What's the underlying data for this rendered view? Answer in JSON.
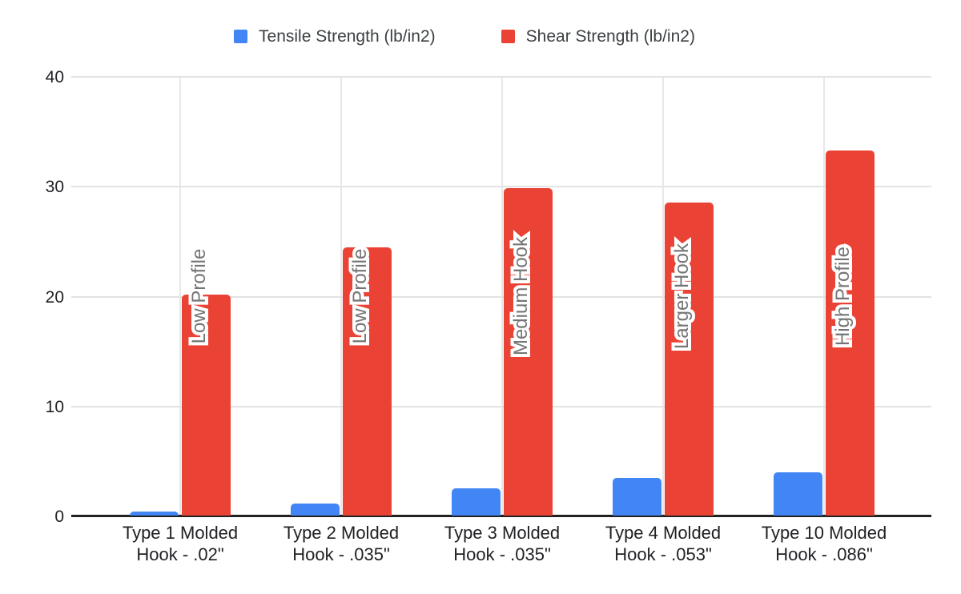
{
  "legend": {
    "items": [
      {
        "label": "Tensile Strength (lb/in2)",
        "color": "#4285f4"
      },
      {
        "label": "Shear Strength (lb/in2)",
        "color": "#ea4335"
      }
    ]
  },
  "chart_data": {
    "type": "bar",
    "title": "",
    "xlabel": "",
    "ylabel": "",
    "categories": [
      "Type 1 Molded Hook - .02\"",
      "Type 2 Molded Hook - .035\"",
      "Type 3 Molded Hook - .035\"",
      "Type 4 Molded Hook - .053\"",
      "Type 10 Molded Hook - .086\""
    ],
    "category_lines": [
      [
        "Type 1 Molded",
        "Hook - .02\""
      ],
      [
        "Type 2 Molded",
        "Hook - .035\""
      ],
      [
        "Type 3 Molded",
        "Hook - .035\""
      ],
      [
        "Type 4 Molded",
        "Hook - .053\""
      ],
      [
        "Type 10 Molded",
        "Hook - .086\""
      ]
    ],
    "series": [
      {
        "name": "Tensile Strength (lb/in2)",
        "color": "#4285f4",
        "values": [
          0.4,
          1.1,
          2.5,
          3.4,
          3.9
        ]
      },
      {
        "name": "Shear Strength (lb/in2)",
        "color": "#ea4335",
        "values": [
          20.1,
          24.4,
          29.8,
          28.5,
          33.2
        ],
        "bar_labels": [
          "Low Profile",
          "Low Profile",
          "Medium Hook",
          "Larger Hook",
          "High Profile"
        ]
      }
    ],
    "ylim": [
      0,
      40
    ],
    "yticks": [
      0,
      10,
      20,
      30,
      40
    ],
    "grid": {
      "horizontal": true,
      "vertical_at_category_centers": true
    },
    "legend_position": "top",
    "bar_label_style": {
      "color": "#757575",
      "outline": "#ffffff"
    },
    "axis_color": "#212121",
    "gridline_color": "#e3e3e3"
  }
}
